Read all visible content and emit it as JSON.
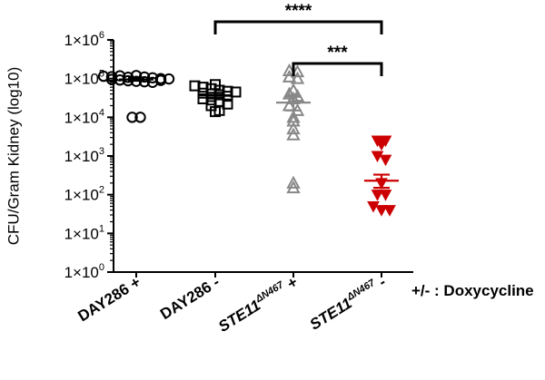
{
  "chart_data": {
    "type": "scatter",
    "ylabel": "CFU/Gram Kidney (log10)",
    "yscale": "log",
    "ylim": [
      1,
      1000000
    ],
    "yticks": [
      {
        "value": 1,
        "base": "1×10",
        "exp": "0"
      },
      {
        "value": 10,
        "base": "1×10",
        "exp": "1"
      },
      {
        "value": 100,
        "base": "1×10",
        "exp": "2"
      },
      {
        "value": 1000,
        "base": "1×10",
        "exp": "3"
      },
      {
        "value": 10000,
        "base": "1×10",
        "exp": "4"
      },
      {
        "value": 100000,
        "base": "1×10",
        "exp": "5"
      },
      {
        "value": 1000000,
        "base": "1×10",
        "exp": "6"
      }
    ],
    "xlabel": "",
    "categories": [
      {
        "main": "DAY286",
        "sup": "",
        "suffix": " +",
        "italic": false
      },
      {
        "main": "DAY286",
        "sup": "",
        "suffix": " -",
        "italic": false
      },
      {
        "main": "STE11",
        "sup": "ΔN467",
        "suffix": "  +",
        "italic": true
      },
      {
        "main": "STE11",
        "sup": "ΔN467",
        "suffix": "  -",
        "italic": true
      }
    ],
    "treatment_label": "+/- : Doxycycline",
    "series": [
      {
        "category": "DAY286 +",
        "marker": "open-circle",
        "color": "#000000",
        "mean": 95000,
        "sem_low": 88000,
        "sem_high": 103000,
        "points": [
          115000,
          112000,
          118000,
          108000,
          120000,
          110000,
          105000,
          100000,
          98000,
          95000,
          92000,
          88000,
          85000,
          83000,
          80000,
          90000,
          10000,
          10000
        ]
      },
      {
        "category": "DAY286 -",
        "marker": "open-square",
        "color": "#000000",
        "mean": 37000,
        "sem_low": 32000,
        "sem_high": 43000,
        "points": [
          70000,
          65000,
          60000,
          55000,
          50000,
          47000,
          45000,
          42000,
          40000,
          38000,
          35000,
          30000,
          28000,
          25000,
          22000,
          20000,
          15000,
          14000
        ]
      },
      {
        "category": "STE11ΔN467 +",
        "marker": "open-triangle-up",
        "color": "#888888",
        "mean": 24000,
        "sem_low": 15000,
        "sem_high": 34000,
        "points": [
          160000,
          150000,
          110000,
          100000,
          50000,
          40000,
          35000,
          30000,
          20000,
          15000,
          10000,
          8000,
          5000,
          3500,
          200,
          150
        ]
      },
      {
        "category": "STE11ΔN467 -",
        "marker": "filled-triangle-down",
        "color": "#cc0000",
        "mean": 230,
        "sem_low": 150,
        "sem_high": 330,
        "points": [
          2500,
          2500,
          2000,
          1000,
          800,
          200,
          100,
          100,
          50,
          40,
          40
        ]
      }
    ],
    "significance": [
      {
        "from": 1,
        "to": 3,
        "label": "****"
      },
      {
        "from": 2,
        "to": 3,
        "label": "***"
      }
    ]
  }
}
